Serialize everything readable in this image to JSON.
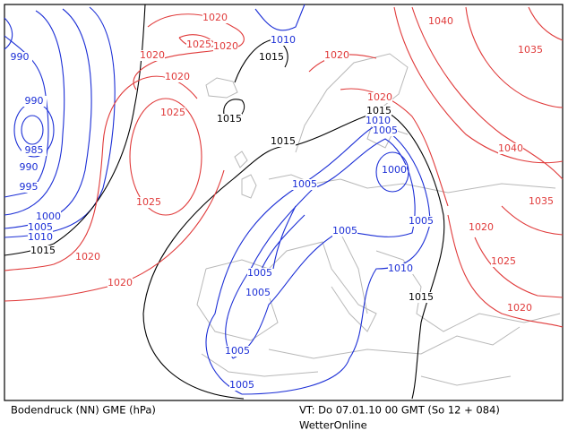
{
  "footer": {
    "left": "Bodendruck (NN) GME (hPa)",
    "right": "VT: Do 07.01.10 00 GMT (So 12 + 084)",
    "credit": "WetterOnline"
  },
  "isobar_labels": [
    {
      "text": 990,
      "color": "#1c2fd6"
    },
    {
      "text": 990,
      "color": "#1c2fd6"
    },
    {
      "text": 985,
      "color": "#1c2fd6"
    },
    {
      "text": 990,
      "color": "#1c2fd6"
    },
    {
      "text": 995,
      "color": "#1c2fd6"
    },
    {
      "text": 1000,
      "color": "#1c2fd6"
    },
    {
      "text": 1005,
      "color": "#1c2fd6"
    },
    {
      "text": 1010,
      "color": "#1c2fd6"
    },
    {
      "text": 1010,
      "color": "#1c2fd6"
    },
    {
      "text": 1010,
      "color": "#1c2fd6"
    },
    {
      "text": 1005,
      "color": "#1c2fd6"
    },
    {
      "text": 1000,
      "color": "#1c2fd6"
    },
    {
      "text": 1005,
      "color": "#1c2fd6"
    },
    {
      "text": 1005,
      "color": "#1c2fd6"
    },
    {
      "text": 1005,
      "color": "#1c2fd6"
    },
    {
      "text": 1005,
      "color": "#1c2fd6"
    },
    {
      "text": 1005,
      "color": "#1c2fd6"
    },
    {
      "text": 1010,
      "color": "#1c2fd6"
    },
    {
      "text": 1005,
      "color": "#1c2fd6"
    },
    {
      "text": 1005,
      "color": "#1c2fd6"
    },
    {
      "text": 1015,
      "color": "#000000"
    },
    {
      "text": 1015,
      "color": "#000000"
    },
    {
      "text": 1015,
      "color": "#000000"
    },
    {
      "text": 1015,
      "color": "#000000"
    },
    {
      "text": 1015,
      "color": "#000000"
    },
    {
      "text": 1015,
      "color": "#000000"
    },
    {
      "text": 1020,
      "color": "#e03a3a"
    },
    {
      "text": 1025,
      "color": "#e03a3a"
    },
    {
      "text": 1020,
      "color": "#e03a3a"
    },
    {
      "text": 1020,
      "color": "#e03a3a"
    },
    {
      "text": 1020,
      "color": "#e03a3a"
    },
    {
      "text": 1025,
      "color": "#e03a3a"
    },
    {
      "text": 1025,
      "color": "#e03a3a"
    },
    {
      "text": 1020,
      "color": "#e03a3a"
    },
    {
      "text": 1020,
      "color": "#e03a3a"
    },
    {
      "text": 1020,
      "color": "#e03a3a"
    },
    {
      "text": 1020,
      "color": "#e03a3a"
    },
    {
      "text": 1040,
      "color": "#e03a3a"
    },
    {
      "text": 1035,
      "color": "#e03a3a"
    },
    {
      "text": 1040,
      "color": "#e03a3a"
    },
    {
      "text": 1035,
      "color": "#e03a3a"
    },
    {
      "text": 1020,
      "color": "#e03a3a"
    },
    {
      "text": 1025,
      "color": "#e03a3a"
    },
    {
      "text": 1020,
      "color": "#e03a3a"
    }
  ]
}
